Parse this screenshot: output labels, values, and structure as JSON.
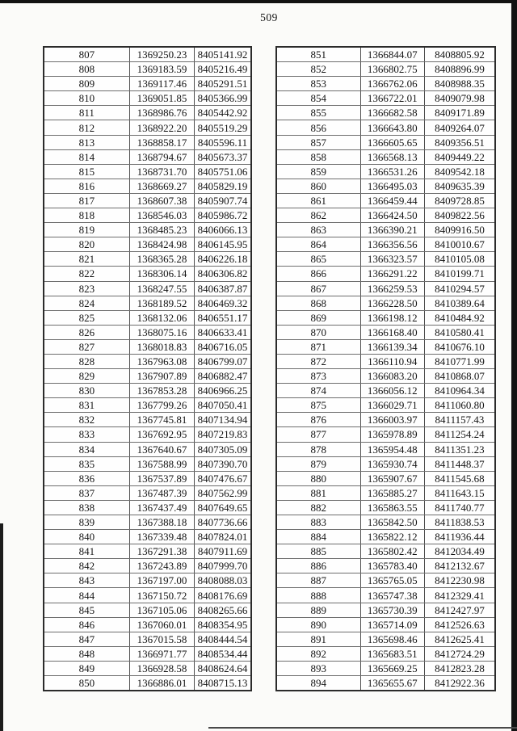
{
  "page": {
    "number": "509"
  },
  "tables": {
    "left": {
      "rows": [
        [
          "807",
          "1369250.23",
          "8405141.92"
        ],
        [
          "808",
          "1369183.59",
          "8405216.49"
        ],
        [
          "809",
          "1369117.46",
          "8405291.51"
        ],
        [
          "810",
          "1369051.85",
          "8405366.99"
        ],
        [
          "811",
          "1368986.76",
          "8405442.92"
        ],
        [
          "812",
          "1368922.20",
          "8405519.29"
        ],
        [
          "813",
          "1368858.17",
          "8405596.11"
        ],
        [
          "814",
          "1368794.67",
          "8405673.37"
        ],
        [
          "815",
          "1368731.70",
          "8405751.06"
        ],
        [
          "816",
          "1368669.27",
          "8405829.19"
        ],
        [
          "817",
          "1368607.38",
          "8405907.74"
        ],
        [
          "818",
          "1368546.03",
          "8405986.72"
        ],
        [
          "819",
          "1368485.23",
          "8406066.13"
        ],
        [
          "820",
          "1368424.98",
          "8406145.95"
        ],
        [
          "821",
          "1368365.28",
          "8406226.18"
        ],
        [
          "822",
          "1368306.14",
          "8406306.82"
        ],
        [
          "823",
          "1368247.55",
          "8406387.87"
        ],
        [
          "824",
          "1368189.52",
          "8406469.32"
        ],
        [
          "825",
          "1368132.06",
          "8406551.17"
        ],
        [
          "826",
          "1368075.16",
          "8406633.41"
        ],
        [
          "827",
          "1368018.83",
          "8406716.05"
        ],
        [
          "828",
          "1367963.08",
          "8406799.07"
        ],
        [
          "829",
          "1367907.89",
          "8406882.47"
        ],
        [
          "830",
          "1367853.28",
          "8406966.25"
        ],
        [
          "831",
          "1367799.26",
          "8407050.41"
        ],
        [
          "832",
          "1367745.81",
          "8407134.94"
        ],
        [
          "833",
          "1367692.95",
          "8407219.83"
        ],
        [
          "834",
          "1367640.67",
          "8407305.09"
        ],
        [
          "835",
          "1367588.99",
          "8407390.70"
        ],
        [
          "836",
          "1367537.89",
          "8407476.67"
        ],
        [
          "837",
          "1367487.39",
          "8407562.99"
        ],
        [
          "838",
          "1367437.49",
          "8407649.65"
        ],
        [
          "839",
          "1367388.18",
          "8407736.66"
        ],
        [
          "840",
          "1367339.48",
          "8407824.01"
        ],
        [
          "841",
          "1367291.38",
          "8407911.69"
        ],
        [
          "842",
          "1367243.89",
          "8407999.70"
        ],
        [
          "843",
          "1367197.00",
          "8408088.03"
        ],
        [
          "844",
          "1367150.72",
          "8408176.69"
        ],
        [
          "845",
          "1367105.06",
          "8408265.66"
        ],
        [
          "846",
          "1367060.01",
          "8408354.95"
        ],
        [
          "847",
          "1367015.58",
          "8408444.54"
        ],
        [
          "848",
          "1366971.77",
          "8408534.44"
        ],
        [
          "849",
          "1366928.58",
          "8408624.64"
        ],
        [
          "850",
          "1366886.01",
          "8408715.13"
        ]
      ]
    },
    "right": {
      "rows": [
        [
          "851",
          "1366844.07",
          "8408805.92"
        ],
        [
          "852",
          "1366802.75",
          "8408896.99"
        ],
        [
          "853",
          "1366762.06",
          "8408988.35"
        ],
        [
          "854",
          "1366722.01",
          "8409079.98"
        ],
        [
          "855",
          "1366682.58",
          "8409171.89"
        ],
        [
          "856",
          "1366643.80",
          "8409264.07"
        ],
        [
          "857",
          "1366605.65",
          "8409356.51"
        ],
        [
          "858",
          "1366568.13",
          "8409449.22"
        ],
        [
          "859",
          "1366531.26",
          "8409542.18"
        ],
        [
          "860",
          "1366495.03",
          "8409635.39"
        ],
        [
          "861",
          "1366459.44",
          "8409728.85"
        ],
        [
          "862",
          "1366424.50",
          "8409822.56"
        ],
        [
          "863",
          "1366390.21",
          "8409916.50"
        ],
        [
          "864",
          "1366356.56",
          "8410010.67"
        ],
        [
          "865",
          "1366323.57",
          "8410105.08"
        ],
        [
          "866",
          "1366291.22",
          "8410199.71"
        ],
        [
          "867",
          "1366259.53",
          "8410294.57"
        ],
        [
          "868",
          "1366228.50",
          "8410389.64"
        ],
        [
          "869",
          "1366198.12",
          "8410484.92"
        ],
        [
          "870",
          "1366168.40",
          "8410580.41"
        ],
        [
          "871",
          "1366139.34",
          "8410676.10"
        ],
        [
          "872",
          "1366110.94",
          "8410771.99"
        ],
        [
          "873",
          "1366083.20",
          "8410868.07"
        ],
        [
          "874",
          "1366056.12",
          "8410964.34"
        ],
        [
          "875",
          "1366029.71",
          "8411060.80"
        ],
        [
          "876",
          "1366003.97",
          "8411157.43"
        ],
        [
          "877",
          "1365978.89",
          "8411254.24"
        ],
        [
          "878",
          "1365954.48",
          "8411351.23"
        ],
        [
          "879",
          "1365930.74",
          "8411448.37"
        ],
        [
          "880",
          "1365907.67",
          "8411545.68"
        ],
        [
          "881",
          "1365885.27",
          "8411643.15"
        ],
        [
          "882",
          "1365863.55",
          "8411740.77"
        ],
        [
          "883",
          "1365842.50",
          "8411838.53"
        ],
        [
          "884",
          "1365822.12",
          "8411936.44"
        ],
        [
          "885",
          "1365802.42",
          "8412034.49"
        ],
        [
          "886",
          "1365783.40",
          "8412132.67"
        ],
        [
          "887",
          "1365765.05",
          "8412230.98"
        ],
        [
          "888",
          "1365747.38",
          "8412329.41"
        ],
        [
          "889",
          "1365730.39",
          "8412427.97"
        ],
        [
          "890",
          "1365714.09",
          "8412526.63"
        ],
        [
          "891",
          "1365698.46",
          "8412625.41"
        ],
        [
          "892",
          "1365683.51",
          "8412724.29"
        ],
        [
          "893",
          "1365669.25",
          "8412823.28"
        ],
        [
          "894",
          "1365655.67",
          "8412922.36"
        ]
      ]
    }
  }
}
